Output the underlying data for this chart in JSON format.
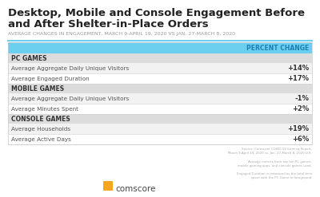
{
  "title_line1": "Desktop, Mobile and Console Engagement Before",
  "title_line2": "and After Shelter-in-Place Orders",
  "subtitle": "AVERAGE CHANGES IN ENGAGEMENT, MARCH 9-APRIL 19, 2020 VS JAN. 27-MARCH 8, 2020",
  "header_label": "PERCENT CHANGE",
  "header_bg": "#6dcff0",
  "header_text_color": "#1a7fb5",
  "accent_line_color": "#6dcff0",
  "section_bg": "#dcdcdc",
  "row_bg_1": "#f2f2f2",
  "row_bg_2": "#ffffff",
  "sections": [
    {
      "name": "PC GAMES",
      "rows": [
        {
          "label": "Average Aggregate Daily Unique Visitors",
          "value": "+14%"
        },
        {
          "label": "Average Engaged Duration",
          "value": "+17%"
        }
      ]
    },
    {
      "name": "MOBILE GAMES",
      "rows": [
        {
          "label": "Average Aggregate Daily Unique Visitors",
          "value": "-1%"
        },
        {
          "label": "Average Minutes Spent",
          "value": "+2%"
        }
      ]
    },
    {
      "name": "CONSOLE GAMES",
      "rows": [
        {
          "label": "Average Households",
          "value": "+19%"
        },
        {
          "label": "Average Active Days",
          "value": "+6%"
        }
      ]
    }
  ],
  "footnote": "Source: Comscore COVID-19 Gaming Report,\nMarch 9-April 19, 2020 vs. Jan. 27-March 8, 2020 U.S.\n\nAverage metrics from top ten PC games,\nmobile gaming apps, and console games used.\n\nEngaged Duration is measured as the total time\nspent with the PC Game in foreground.",
  "logo_text": "comscore",
  "logo_icon_color": "#f5a623",
  "background_color": "#ffffff",
  "title_color": "#222222",
  "subtitle_color": "#999999",
  "section_text_color": "#333333",
  "row_text_color": "#555555",
  "value_text_color": "#333333"
}
